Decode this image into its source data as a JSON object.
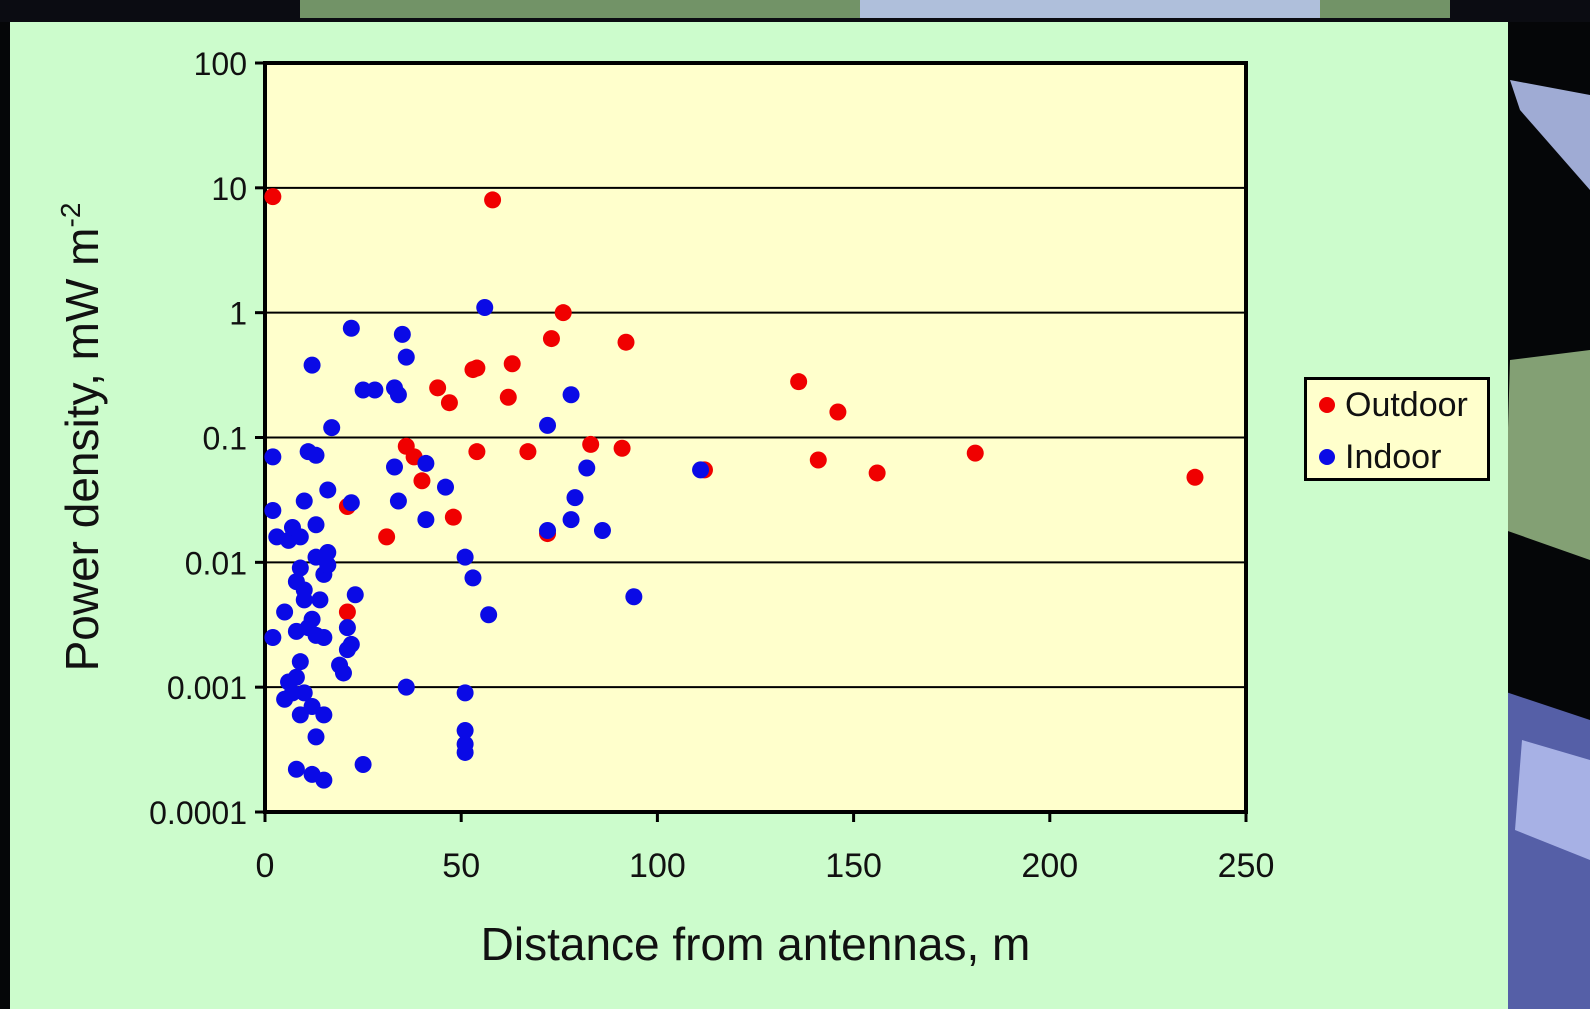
{
  "colors": {
    "panel_background": "#ccfccc",
    "plot_background": "#ffffcc",
    "outdoor": "#f00000",
    "indoor": "#0a0ae6",
    "axis": "#000000"
  },
  "chart_data": {
    "type": "scatter",
    "xlabel": "Distance from antennas, m",
    "ylabel": {
      "main": "Power density, mW m",
      "superscript": "-2"
    },
    "xlim": [
      0,
      250
    ],
    "ylim": [
      0.0001,
      100
    ],
    "yscale": "log",
    "x_ticks": [
      0,
      50,
      100,
      150,
      200,
      250
    ],
    "x_tick_labels": [
      "0",
      "50",
      "100",
      "150",
      "200",
      "250"
    ],
    "y_ticks": [
      0.0001,
      0.001,
      0.01,
      0.1,
      1,
      10,
      100
    ],
    "y_tick_labels": [
      "0.0001",
      "0.001",
      "0.01",
      "0.1",
      "1",
      "10",
      "100"
    ],
    "grid": "horizontal major lines",
    "legend_position": "right",
    "series": [
      {
        "name": "Outdoor",
        "color": "#f00000",
        "points": [
          [
            2,
            8.5
          ],
          [
            58,
            8.0
          ],
          [
            76,
            1.0
          ],
          [
            73,
            0.62
          ],
          [
            92,
            0.58
          ],
          [
            63,
            0.39
          ],
          [
            62,
            0.21
          ],
          [
            53,
            0.35
          ],
          [
            54,
            0.36
          ],
          [
            44,
            0.25
          ],
          [
            47,
            0.19
          ],
          [
            36,
            0.085
          ],
          [
            38,
            0.07
          ],
          [
            40,
            0.045
          ],
          [
            54,
            0.077
          ],
          [
            67,
            0.077
          ],
          [
            83,
            0.088
          ],
          [
            91,
            0.082
          ],
          [
            48,
            0.023
          ],
          [
            31,
            0.016
          ],
          [
            21,
            0.028
          ],
          [
            72,
            0.017
          ],
          [
            21,
            0.004
          ],
          [
            112,
            0.055
          ],
          [
            136,
            0.28
          ],
          [
            146,
            0.16
          ],
          [
            141,
            0.066
          ],
          [
            156,
            0.052
          ],
          [
            181,
            0.075
          ],
          [
            237,
            0.048
          ]
        ]
      },
      {
        "name": "Indoor",
        "color": "#0a0ae6",
        "points": [
          [
            2,
            0.07
          ],
          [
            2,
            0.026
          ],
          [
            3,
            0.016
          ],
          [
            6,
            0.015
          ],
          [
            7,
            0.019
          ],
          [
            9,
            0.016
          ],
          [
            8,
            0.007
          ],
          [
            9,
            0.009
          ],
          [
            10,
            0.006
          ],
          [
            10,
            0.005
          ],
          [
            5,
            0.004
          ],
          [
            8,
            0.0028
          ],
          [
            11,
            0.003
          ],
          [
            13,
            0.0026
          ],
          [
            15,
            0.0025
          ],
          [
            2,
            0.0025
          ],
          [
            9,
            0.0016
          ],
          [
            6,
            0.0011
          ],
          [
            8,
            0.0012
          ],
          [
            5,
            0.0008
          ],
          [
            7,
            0.0009
          ],
          [
            10,
            0.0009
          ],
          [
            9,
            0.0006
          ],
          [
            12,
            0.0007
          ],
          [
            15,
            0.0006
          ],
          [
            13,
            0.0004
          ],
          [
            8,
            0.00022
          ],
          [
            12,
            0.0002
          ],
          [
            15,
            0.00018
          ],
          [
            25,
            0.00024
          ],
          [
            36,
            0.001
          ],
          [
            51,
            0.0009
          ],
          [
            51,
            0.00045
          ],
          [
            51,
            0.00035
          ],
          [
            51,
            0.0003
          ],
          [
            19,
            0.0015
          ],
          [
            20,
            0.0013
          ],
          [
            21,
            0.002
          ],
          [
            22,
            0.0022
          ],
          [
            21,
            0.003
          ],
          [
            23,
            0.0055
          ],
          [
            14,
            0.005
          ],
          [
            12,
            0.0035
          ],
          [
            15,
            0.008
          ],
          [
            16,
            0.0095
          ],
          [
            16,
            0.012
          ],
          [
            13,
            0.011
          ],
          [
            10,
            0.031
          ],
          [
            13,
            0.02
          ],
          [
            16,
            0.038
          ],
          [
            22,
            0.03
          ],
          [
            11,
            0.077
          ],
          [
            13,
            0.072
          ],
          [
            17,
            0.12
          ],
          [
            12,
            0.38
          ],
          [
            22,
            0.75
          ],
          [
            35,
            0.67
          ],
          [
            36,
            0.44
          ],
          [
            25,
            0.24
          ],
          [
            28,
            0.24
          ],
          [
            33,
            0.25
          ],
          [
            34,
            0.22
          ],
          [
            33,
            0.058
          ],
          [
            34,
            0.031
          ],
          [
            41,
            0.062
          ],
          [
            41,
            0.022
          ],
          [
            46,
            0.04
          ],
          [
            51,
            0.011
          ],
          [
            53,
            0.0075
          ],
          [
            57,
            0.0038
          ],
          [
            56,
            1.1
          ],
          [
            72,
            0.125
          ],
          [
            78,
            0.22
          ],
          [
            82,
            0.057
          ],
          [
            79,
            0.033
          ],
          [
            78,
            0.022
          ],
          [
            86,
            0.018
          ],
          [
            72,
            0.018
          ],
          [
            94,
            0.0053
          ],
          [
            111,
            0.055
          ]
        ]
      }
    ]
  }
}
